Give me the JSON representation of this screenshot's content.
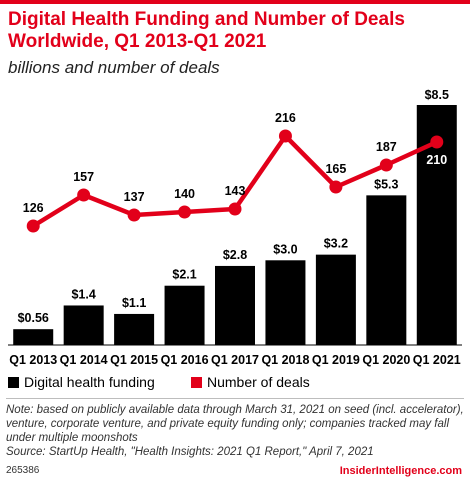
{
  "header": {
    "title": "Digital Health Funding and Number of Deals Worldwide, Q1 2013-Q1 2021",
    "subtitle": "billions and number of deals"
  },
  "chart_data": {
    "type": "bar",
    "categories": [
      "Q1 2013",
      "Q1 2014",
      "Q1 2015",
      "Q1 2016",
      "Q1 2017",
      "Q1 2018",
      "Q1 2019",
      "Q1 2020",
      "Q1 2021"
    ],
    "series": [
      {
        "name": "Digital health funding",
        "type": "bar",
        "values": [
          0.56,
          1.4,
          1.1,
          2.1,
          2.8,
          3.0,
          3.2,
          5.3,
          8.5
        ],
        "labels": [
          "$0.56",
          "$1.4",
          "$1.1",
          "$2.1",
          "$2.8",
          "$3.0",
          "$3.2",
          "$5.3",
          "$8.5"
        ],
        "color": "#000000"
      },
      {
        "name": "Number of deals",
        "type": "line",
        "values": [
          126,
          157,
          137,
          140,
          143,
          216,
          165,
          187,
          210
        ],
        "labels": [
          "126",
          "157",
          "137",
          "140",
          "143",
          "216",
          "165",
          "187",
          "210"
        ],
        "color": "#e2001a"
      }
    ],
    "legend": "bottom-left",
    "grid": false
  },
  "notes": {
    "note_text": "Note: based on publicly available data through March 31, 2021 on seed (incl. accelerator), venture, corporate venture, and private equity funding only; companies tracked may fall under multiple moonshots",
    "source_text": "Source: StartUp Health, \"Health Insights: 2021 Q1 Report,\" April 7, 2021"
  },
  "footer": {
    "chart_id": "265386",
    "brand": "InsiderIntelligence.com"
  },
  "colors": {
    "accent": "#e2001a",
    "bar": "#000000"
  }
}
